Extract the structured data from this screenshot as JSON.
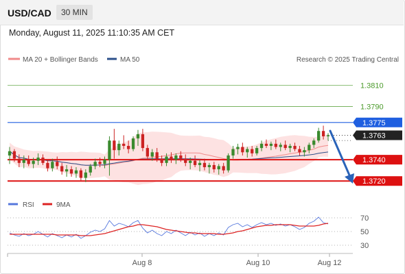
{
  "header": {
    "symbol": "USD/CAD",
    "timeframe": "30 MIN"
  },
  "datetime": "Monday, August 11, 2025 11:10:35 AM CET",
  "legend": {
    "ma_bb": "MA 20 + Bollinger Bands",
    "ma50": "MA 50",
    "credit": "Research © 2025 Trading Central"
  },
  "rsi_legend": {
    "rsi": "RSI",
    "ma9": "9MA"
  },
  "colors": {
    "up_candle": "#3a8a2e",
    "down_candle": "#cc2222",
    "resistance": "#1f5fe0",
    "support": "#dd1111",
    "target_green": "#4a9a2a",
    "bollinger_fill": "#fcd8d8",
    "ma20": "#f08a8a",
    "ma50": "#2b4f8a",
    "rsi": "#5577dd",
    "rsi_ma": "#dd2222",
    "arrow": "#2a63b8"
  },
  "chart_data": [
    {
      "type": "candlestick",
      "title": "USD/CAD",
      "ylim": [
        1.3706,
        1.3827
      ],
      "x_ticks": [
        "Aug 8",
        "Aug 10",
        "Aug 12"
      ],
      "levels": [
        {
          "label": "1.3810",
          "value": 1.381,
          "kind": "target"
        },
        {
          "label": "1.3790",
          "value": 1.379,
          "kind": "target"
        },
        {
          "label": "1.3775",
          "value": 1.3775,
          "kind": "resistance"
        },
        {
          "label": "1.3763",
          "value": 1.3763,
          "kind": "last"
        },
        {
          "label": "1.3740",
          "value": 1.374,
          "kind": "support"
        },
        {
          "label": "1.3720",
          "value": 1.372,
          "kind": "support"
        }
      ],
      "candles": [
        [
          1.3744,
          1.3752,
          1.3736,
          1.3748
        ],
        [
          1.3748,
          1.375,
          1.3738,
          1.3741
        ],
        [
          1.3741,
          1.3745,
          1.3733,
          1.3737
        ],
        [
          1.3737,
          1.3744,
          1.3732,
          1.374
        ],
        [
          1.374,
          1.3744,
          1.3734,
          1.3736
        ],
        [
          1.3736,
          1.3742,
          1.3732,
          1.3739
        ],
        [
          1.3739,
          1.3746,
          1.3735,
          1.3742
        ],
        [
          1.3742,
          1.3745,
          1.3735,
          1.3737
        ],
        [
          1.3737,
          1.374,
          1.3729,
          1.3732
        ],
        [
          1.3732,
          1.3741,
          1.3729,
          1.3738
        ],
        [
          1.3738,
          1.3743,
          1.3731,
          1.3734
        ],
        [
          1.3734,
          1.3737,
          1.3726,
          1.3729
        ],
        [
          1.3729,
          1.3735,
          1.3724,
          1.3731
        ],
        [
          1.3731,
          1.3734,
          1.3724,
          1.3727
        ],
        [
          1.3727,
          1.3733,
          1.3723,
          1.373
        ],
        [
          1.373,
          1.3732,
          1.372,
          1.3723
        ],
        [
          1.3723,
          1.3731,
          1.3719,
          1.3728
        ],
        [
          1.3728,
          1.3736,
          1.3725,
          1.3734
        ],
        [
          1.3734,
          1.3741,
          1.3731,
          1.3738
        ],
        [
          1.3738,
          1.3742,
          1.3733,
          1.3736
        ],
        [
          1.3736,
          1.3743,
          1.3732,
          1.374
        ],
        [
          1.374,
          1.3762,
          1.3725,
          1.3758
        ],
        [
          1.3758,
          1.3769,
          1.3741,
          1.3749
        ],
        [
          1.3749,
          1.3758,
          1.3744,
          1.3755
        ],
        [
          1.3755,
          1.3763,
          1.375,
          1.3753
        ],
        [
          1.3753,
          1.3758,
          1.3746,
          1.375
        ],
        [
          1.375,
          1.3762,
          1.3748,
          1.376
        ],
        [
          1.376,
          1.3768,
          1.3753,
          1.3764
        ],
        [
          1.3764,
          1.3769,
          1.3748,
          1.3751
        ],
        [
          1.3751,
          1.3754,
          1.374,
          1.3743
        ],
        [
          1.3743,
          1.375,
          1.3739,
          1.3747
        ],
        [
          1.3747,
          1.3751,
          1.3738,
          1.3741
        ],
        [
          1.3741,
          1.3744,
          1.3734,
          1.3737
        ],
        [
          1.3737,
          1.3746,
          1.3734,
          1.3743
        ],
        [
          1.3743,
          1.3747,
          1.3737,
          1.374
        ],
        [
          1.374,
          1.3746,
          1.3736,
          1.3744
        ],
        [
          1.3744,
          1.3748,
          1.3738,
          1.3741
        ],
        [
          1.3741,
          1.3745,
          1.3734,
          1.3737
        ],
        [
          1.3737,
          1.3742,
          1.3731,
          1.3739
        ],
        [
          1.3739,
          1.3744,
          1.3733,
          1.3735
        ],
        [
          1.3735,
          1.374,
          1.3729,
          1.3737
        ],
        [
          1.3737,
          1.3741,
          1.373,
          1.3733
        ],
        [
          1.3733,
          1.3737,
          1.3727,
          1.3735
        ],
        [
          1.3735,
          1.3738,
          1.3728,
          1.3731
        ],
        [
          1.3731,
          1.3736,
          1.3726,
          1.3734
        ],
        [
          1.3734,
          1.3737,
          1.3727,
          1.373
        ],
        [
          1.373,
          1.3746,
          1.3728,
          1.3744
        ],
        [
          1.3744,
          1.3753,
          1.3741,
          1.375
        ],
        [
          1.375,
          1.3755,
          1.3745,
          1.3752
        ],
        [
          1.3752,
          1.3756,
          1.3744,
          1.3747
        ],
        [
          1.3747,
          1.3752,
          1.3742,
          1.375
        ],
        [
          1.375,
          1.3753,
          1.3743,
          1.3746
        ],
        [
          1.3746,
          1.3753,
          1.3744,
          1.3751
        ],
        [
          1.3751,
          1.3758,
          1.3748,
          1.3755
        ],
        [
          1.3755,
          1.3759,
          1.3751,
          1.3753
        ],
        [
          1.3753,
          1.3757,
          1.3749,
          1.3755
        ],
        [
          1.3755,
          1.3759,
          1.375,
          1.3752
        ],
        [
          1.3752,
          1.3756,
          1.3748,
          1.3754
        ],
        [
          1.3754,
          1.3758,
          1.3749,
          1.3751
        ],
        [
          1.3751,
          1.3755,
          1.3747,
          1.3753
        ],
        [
          1.3753,
          1.3756,
          1.3748,
          1.375
        ],
        [
          1.375,
          1.3753,
          1.3744,
          1.3747
        ],
        [
          1.3747,
          1.3752,
          1.3743,
          1.3749
        ],
        [
          1.3749,
          1.3756,
          1.3746,
          1.3754
        ],
        [
          1.3754,
          1.376,
          1.3751,
          1.3758
        ],
        [
          1.3758,
          1.377,
          1.3756,
          1.3767
        ],
        [
          1.3767,
          1.3772,
          1.3759,
          1.3762
        ],
        [
          1.3762,
          1.3765,
          1.3758,
          1.3763
        ]
      ]
    },
    {
      "type": "line",
      "title": "RSI",
      "ylim": [
        22,
        78
      ],
      "y_ticks": [
        70,
        50,
        30
      ],
      "series": [
        {
          "name": "RSI",
          "values": [
            48,
            45,
            43,
            47,
            44,
            46,
            50,
            46,
            42,
            47,
            44,
            41,
            45,
            42,
            46,
            40,
            44,
            49,
            52,
            50,
            54,
            66,
            58,
            62,
            60,
            57,
            63,
            66,
            55,
            48,
            52,
            47,
            44,
            50,
            47,
            52,
            48,
            44,
            49,
            45,
            48,
            43,
            47,
            44,
            48,
            45,
            56,
            60,
            62,
            57,
            60,
            56,
            60,
            63,
            60,
            62,
            59,
            61,
            58,
            60,
            57,
            53,
            56,
            62,
            65,
            71,
            63,
            61
          ]
        },
        {
          "name": "9MA",
          "values": [
            46,
            46,
            46,
            46,
            46,
            46,
            46,
            46,
            46,
            46,
            45,
            45,
            45,
            45,
            45,
            44,
            44,
            44,
            45,
            46,
            47,
            49,
            51,
            53,
            55,
            57,
            58,
            60,
            60,
            59,
            58,
            57,
            55,
            53,
            52,
            51,
            50,
            49,
            48,
            48,
            47,
            47,
            47,
            47,
            46,
            46,
            47,
            48,
            50,
            51,
            53,
            55,
            57,
            58,
            59,
            59,
            60,
            60,
            60,
            60,
            59,
            58,
            58,
            58,
            58,
            59,
            61,
            62
          ]
        }
      ]
    }
  ]
}
